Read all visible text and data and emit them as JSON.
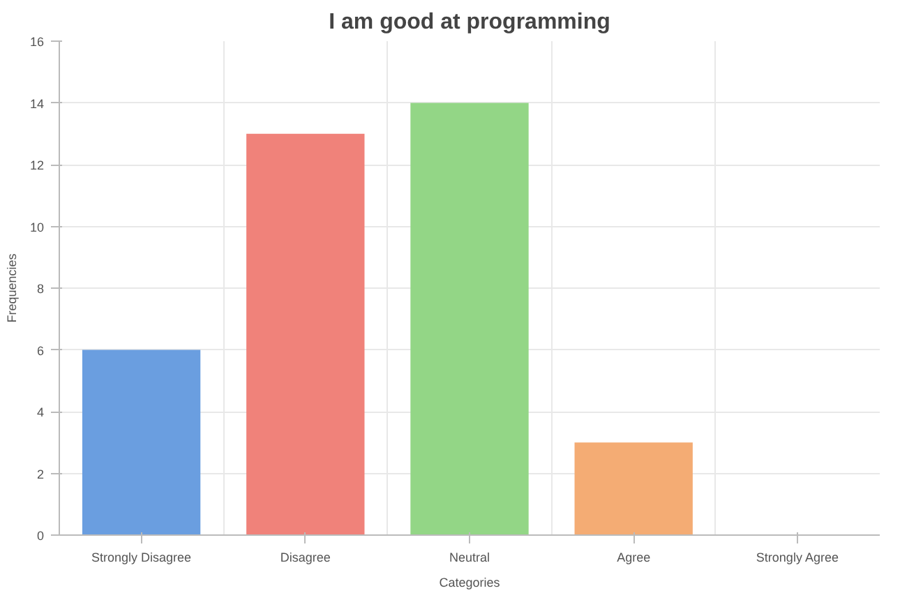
{
  "chart_data": {
    "type": "bar",
    "title": "I am good at programming",
    "xlabel": "Categories",
    "ylabel": "Frequencies",
    "categories": [
      "Strongly Disagree",
      "Disagree",
      "Neutral",
      "Agree",
      "Strongly Agree"
    ],
    "values": [
      6,
      13,
      14,
      3,
      0
    ],
    "colors": [
      "#6a9ee0",
      "#f0827a",
      "#93d686",
      "#f4ac74",
      "#b59be0"
    ],
    "ylim": [
      0,
      16
    ],
    "yticks": [
      0,
      2,
      4,
      6,
      8,
      10,
      12,
      14,
      16
    ],
    "grid": true
  }
}
